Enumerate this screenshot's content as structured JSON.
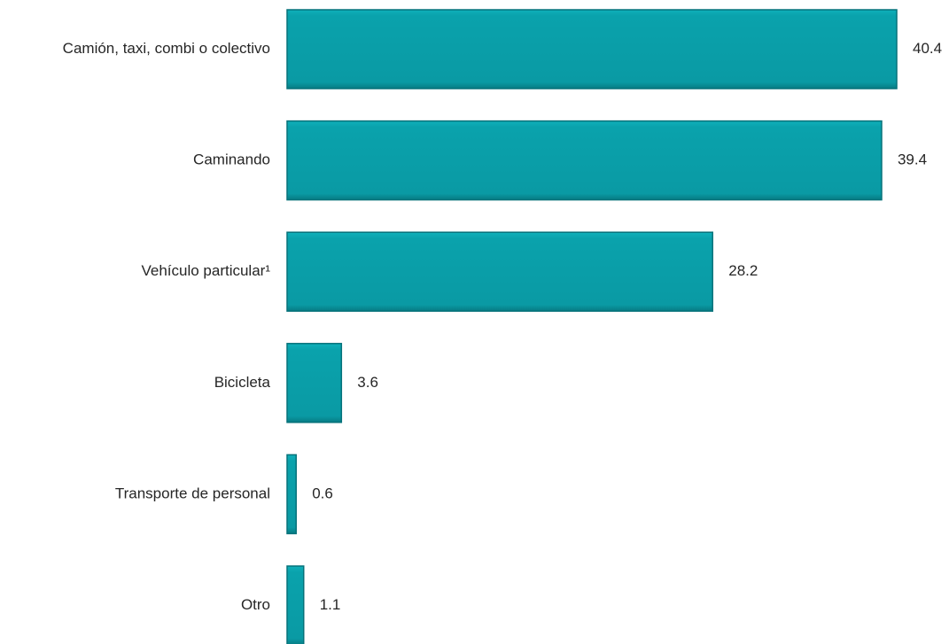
{
  "chart_data": {
    "type": "bar",
    "orientation": "horizontal",
    "categories": [
      "Camión, taxi, combi o colectivo",
      "Caminando",
      "Vehículo particular¹",
      "Bicicleta",
      "Transporte de personal",
      "Otro"
    ],
    "values": [
      40.4,
      39.4,
      28.2,
      3.6,
      0.6,
      1.1
    ],
    "value_labels": [
      "40.4",
      "39.4",
      "28.2",
      "3.6",
      "0.6",
      "1.1"
    ],
    "xlim": [
      0,
      40.4
    ],
    "grid": false,
    "legend": "none",
    "colors": {
      "bar": "#0a9faa",
      "bar_edge": "#06727a",
      "text": "#262626"
    }
  }
}
